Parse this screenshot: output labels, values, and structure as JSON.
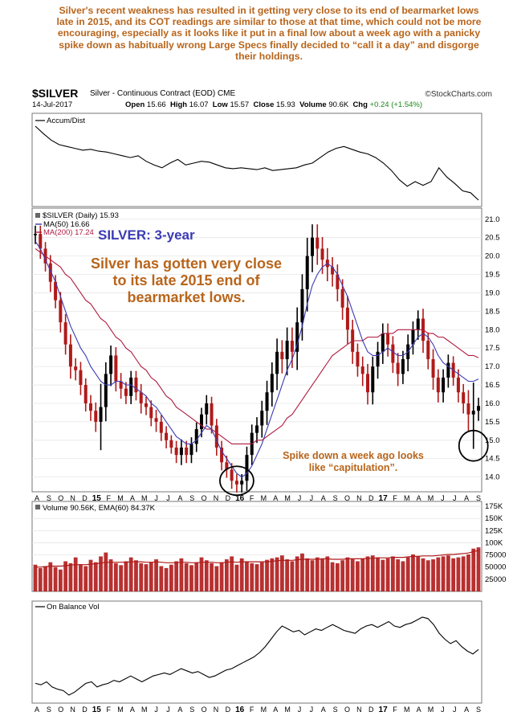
{
  "commentary": "Silver's recent weakness has resulted in it getting very close to its end of bearmarket lows late in 2015, and its COT readings are similar to those at that time, which could not be more encouraging, especially as it looks like it put in a final low about a week ago with a panicky spike down as habitually wrong Large Specs finally decided to “call it a day” and disgorge their holdings.",
  "header": {
    "symbol": "$SILVER",
    "name": "Silver - Continuous Contract (EOD)",
    "exchange": "CME",
    "brand": "©StockCharts.com",
    "date": "14-Jul-2017",
    "open_label": "Open",
    "open": "15.66",
    "high_label": "High",
    "high": "16.07",
    "low_label": "Low",
    "low": "15.57",
    "close_label": "Close",
    "close": "15.93",
    "volume_label": "Volume",
    "volume": "90.6K",
    "chg_label": "Chg",
    "chg": "+0.24 (+1.54%)"
  },
  "annotations": {
    "title": "SILVER: 3-year",
    "main": "Silver has gotten very close to its late 2015 end of bearmarket lows.",
    "spike": "Spike down a week ago looks like “capitulation”."
  },
  "chart_data": [
    {
      "type": "line",
      "panel": "Accum/Dist",
      "legend": "Accum/Dist",
      "series": [
        {
          "name": "Accum/Dist",
          "values": [
            100,
            92,
            85,
            80,
            78,
            76,
            74,
            75,
            73,
            72,
            70,
            68,
            66,
            68,
            62,
            58,
            55,
            60,
            64,
            58,
            60,
            62,
            61,
            58,
            55,
            54,
            55,
            54,
            53,
            55,
            52,
            53,
            54,
            55,
            58,
            60,
            66,
            72,
            76,
            78,
            75,
            72,
            70,
            66,
            60,
            52,
            42,
            35,
            40,
            36,
            40,
            55,
            45,
            38,
            30,
            28,
            20
          ]
        }
      ],
      "colors": {
        "line": "#000000"
      }
    },
    {
      "type": "candlestick",
      "panel": "price",
      "legend": "$SILVER (Daily) 15.93",
      "x_labels": [
        "A",
        "S",
        "O",
        "N",
        "D",
        "15",
        "F",
        "M",
        "A",
        "M",
        "J",
        "J",
        "A",
        "S",
        "O",
        "N",
        "D",
        "16",
        "F",
        "M",
        "A",
        "M",
        "J",
        "J",
        "A",
        "S",
        "O",
        "N",
        "D",
        "17",
        "F",
        "M",
        "A",
        "M",
        "J",
        "J",
        "A",
        "S"
      ],
      "y_ticks": [
        14.0,
        14.5,
        15.0,
        15.5,
        16.0,
        16.5,
        17.0,
        17.5,
        18.0,
        18.5,
        19.0,
        19.5,
        20.0,
        20.5,
        21.0
      ],
      "ylim": [
        13.6,
        21.3
      ],
      "close": [
        20.6,
        20.2,
        19.8,
        19.3,
        18.8,
        18.2,
        17.6,
        17.0,
        16.9,
        16.5,
        16.0,
        15.8,
        15.5,
        15.9,
        16.8,
        17.3,
        16.6,
        16.4,
        16.2,
        16.7,
        16.3,
        16.0,
        15.9,
        15.6,
        15.5,
        15.2,
        15.0,
        14.8,
        14.6,
        14.8,
        14.6,
        14.9,
        15.3,
        15.7,
        16.0,
        15.4,
        14.8,
        14.4,
        14.2,
        13.9,
        13.8,
        13.9,
        14.6,
        15.2,
        15.4,
        15.8,
        16.3,
        16.8,
        17.4,
        17.2,
        17.7,
        17.4,
        18.2,
        19.1,
        20.0,
        20.5,
        20.2,
        19.9,
        19.7,
        19.5,
        19.1,
        18.6,
        18.0,
        17.4,
        17.0,
        16.8,
        16.3,
        17.0,
        17.4,
        17.9,
        17.6,
        17.1,
        16.8,
        17.2,
        17.6,
        18.0,
        18.3,
        17.7,
        17.2,
        16.7,
        16.3,
        16.7,
        17.1,
        16.7,
        16.3,
        16.0,
        15.7,
        15.8,
        15.93
      ],
      "spread": [
        0.5,
        0.5,
        0.4,
        0.5,
        0.4,
        0.5,
        0.5,
        0.6,
        0.5,
        0.5,
        0.4,
        0.5,
        0.5,
        1.4,
        0.7,
        0.6,
        0.5,
        0.5,
        0.4,
        0.4,
        0.4,
        0.5,
        0.4,
        0.4,
        0.5,
        0.4,
        0.4,
        0.3,
        0.4,
        0.5,
        0.4,
        0.4,
        0.4,
        0.4,
        0.5,
        0.4,
        0.4,
        0.4,
        0.4,
        0.4,
        0.4,
        0.4,
        0.5,
        0.5,
        0.5,
        0.6,
        0.7,
        0.7,
        0.8,
        0.7,
        0.8,
        0.8,
        0.9,
        0.9,
        1.1,
        0.8,
        0.8,
        0.7,
        0.7,
        0.6,
        0.6,
        0.6,
        0.7,
        0.6,
        0.5,
        0.6,
        0.6,
        0.6,
        0.6,
        0.6,
        0.6,
        0.5,
        0.6,
        0.5,
        0.6,
        0.5,
        0.5,
        0.6,
        0.5,
        0.6,
        0.5,
        0.5,
        0.5,
        0.4,
        0.5,
        0.5,
        0.8,
        1.7,
        0.5
      ],
      "series": [
        {
          "name": "MA(50) 16.66",
          "values": [
            20.4,
            20.2,
            19.9,
            19.6,
            19.3,
            18.9,
            18.5,
            18.1,
            17.8,
            17.5,
            17.3,
            17.0,
            16.8,
            16.6,
            16.5,
            16.5,
            16.6,
            16.6,
            16.5,
            16.5,
            16.4,
            16.3,
            16.2,
            16.0,
            15.9,
            15.7,
            15.5,
            15.3,
            15.1,
            15.0,
            14.9,
            14.9,
            15.0,
            15.2,
            15.4,
            15.3,
            15.0,
            14.7,
            14.5,
            14.3,
            14.1,
            14.0,
            14.1,
            14.3,
            14.6,
            14.9,
            15.3,
            15.7,
            16.1,
            16.5,
            16.9,
            17.2,
            17.6,
            18.1,
            18.7,
            19.2,
            19.5,
            19.7,
            19.8,
            19.7,
            19.5,
            19.2,
            18.9,
            18.5,
            18.1,
            17.7,
            17.4,
            17.3,
            17.3,
            17.4,
            17.5,
            17.4,
            17.3,
            17.3,
            17.4,
            17.6,
            17.8,
            17.9,
            17.8,
            17.6,
            17.3,
            17.1,
            17.0,
            16.9,
            16.8,
            16.7,
            16.6,
            16.6,
            16.66
          ]
        },
        {
          "name": "MA(200) 17.24",
          "values": [
            20.2,
            20.1,
            20.0,
            19.9,
            19.8,
            19.7,
            19.5,
            19.4,
            19.2,
            19.0,
            18.8,
            18.7,
            18.5,
            18.3,
            18.2,
            18.0,
            17.8,
            17.7,
            17.5,
            17.4,
            17.2,
            17.0,
            16.9,
            16.7,
            16.6,
            16.4,
            16.2,
            16.1,
            15.9,
            15.8,
            15.7,
            15.6,
            15.5,
            15.4,
            15.3,
            15.3,
            15.2,
            15.1,
            15.0,
            14.9,
            14.9,
            14.9,
            14.9,
            14.9,
            15.0,
            15.0,
            15.1,
            15.2,
            15.3,
            15.4,
            15.6,
            15.7,
            15.9,
            16.1,
            16.3,
            16.5,
            16.7,
            16.9,
            17.1,
            17.3,
            17.4,
            17.5,
            17.6,
            17.7,
            17.7,
            17.7,
            17.8,
            17.8,
            17.8,
            17.9,
            17.9,
            17.9,
            18.0,
            18.0,
            18.0,
            18.0,
            18.0,
            18.0,
            17.9,
            17.9,
            17.8,
            17.8,
            17.7,
            17.6,
            17.5,
            17.4,
            17.3,
            17.3,
            17.24
          ]
        }
      ],
      "colors": {
        "up": "#000000",
        "down": "#b01a1a",
        "ma50": "#3b3bb5",
        "ma200": "#b01a40",
        "circle": "#000000"
      }
    },
    {
      "type": "bar",
      "panel": "volume",
      "legend": "Volume 90.56K, EMA(60) 84.37K",
      "y_ticks": [
        25000,
        50000,
        75000,
        100000,
        125000,
        150000,
        175000
      ],
      "y_tick_labels": [
        "25000",
        "50000",
        "75000",
        "100K",
        "125K",
        "150K",
        "175K"
      ],
      "ylim": [
        0,
        185000
      ],
      "series": [
        {
          "name": "Volume 90.56K",
          "values": [
            55000,
            48000,
            52000,
            60000,
            50000,
            45000,
            62000,
            58000,
            70000,
            56000,
            52000,
            65000,
            60000,
            72000,
            80000,
            66000,
            58000,
            54000,
            62000,
            70000,
            64000,
            58000,
            56000,
            60000,
            66000,
            52000,
            48000,
            55000,
            62000,
            68000,
            58000,
            54000,
            60000,
            70000,
            64000,
            58000,
            52000,
            60000,
            66000,
            72000,
            55000,
            68000,
            62000,
            58000,
            56000,
            60000,
            65000,
            68000,
            70000,
            74000,
            66000,
            62000,
            72000,
            78000,
            68000,
            64000,
            70000,
            66000,
            72000,
            60000,
            58000,
            64000,
            70000,
            66000,
            62000,
            68000,
            72000,
            74000,
            70000,
            65000,
            68000,
            72000,
            66000,
            62000,
            70000,
            76000,
            72000,
            68000,
            64000,
            66000,
            70000,
            72000,
            74000,
            68000,
            70000,
            72000,
            76000,
            88000,
            90560
          ]
        },
        {
          "name": "EMA(60) 84.37K",
          "values": [
            50000,
            50000,
            51000,
            52000,
            52000,
            52000,
            53000,
            54000,
            55000,
            55000,
            55000,
            56000,
            57000,
            58000,
            60000,
            60000,
            60000,
            60000,
            60000,
            61000,
            61000,
            61000,
            60000,
            60000,
            61000,
            60000,
            59000,
            59000,
            59000,
            60000,
            60000,
            59000,
            59000,
            60000,
            60000,
            60000,
            59000,
            59000,
            60000,
            61000,
            60000,
            61000,
            61000,
            61000,
            61000,
            61000,
            61000,
            62000,
            63000,
            64000,
            64000,
            64000,
            65000,
            66000,
            66000,
            66000,
            66000,
            67000,
            67000,
            66000,
            66000,
            66000,
            67000,
            67000,
            67000,
            67000,
            68000,
            68000,
            69000,
            69000,
            69000,
            70000,
            70000,
            70000,
            71000,
            72000,
            72000,
            73000,
            73000,
            73000,
            74000,
            75000,
            76000,
            76000,
            77000,
            78000,
            79000,
            82000,
            84370
          ]
        }
      ],
      "colors": {
        "bars": "#b01a1a",
        "ema": "#b01a1a"
      }
    },
    {
      "type": "line",
      "panel": "On Balance Vol",
      "legend": "On Balance Vol",
      "x_labels": [
        "A",
        "S",
        "O",
        "N",
        "D",
        "15",
        "F",
        "M",
        "A",
        "M",
        "J",
        "J",
        "A",
        "S",
        "O",
        "N",
        "D",
        "16",
        "F",
        "M",
        "A",
        "M",
        "J",
        "J",
        "A",
        "S",
        "O",
        "N",
        "D",
        "17",
        "F",
        "M",
        "A",
        "M",
        "J",
        "J",
        "A",
        "S"
      ],
      "series": [
        {
          "name": "On Balance Vol",
          "values": [
            -50,
            -52,
            -48,
            -55,
            -58,
            -60,
            -66,
            -62,
            -56,
            -50,
            -48,
            -55,
            -52,
            -50,
            -46,
            -48,
            -44,
            -40,
            -44,
            -48,
            -44,
            -40,
            -38,
            -36,
            -38,
            -34,
            -30,
            -33,
            -36,
            -34,
            -38,
            -42,
            -40,
            -36,
            -32,
            -30,
            -26,
            -22,
            -18,
            -14,
            -8,
            0,
            10,
            20,
            28,
            24,
            20,
            22,
            16,
            20,
            24,
            22,
            26,
            30,
            26,
            22,
            20,
            18,
            24,
            28,
            30,
            26,
            30,
            34,
            28,
            26,
            30,
            32,
            36,
            40,
            38,
            30,
            18,
            10,
            4,
            8,
            0,
            -6,
            -10,
            -4
          ]
        }
      ],
      "colors": {
        "line": "#000000"
      }
    }
  ]
}
